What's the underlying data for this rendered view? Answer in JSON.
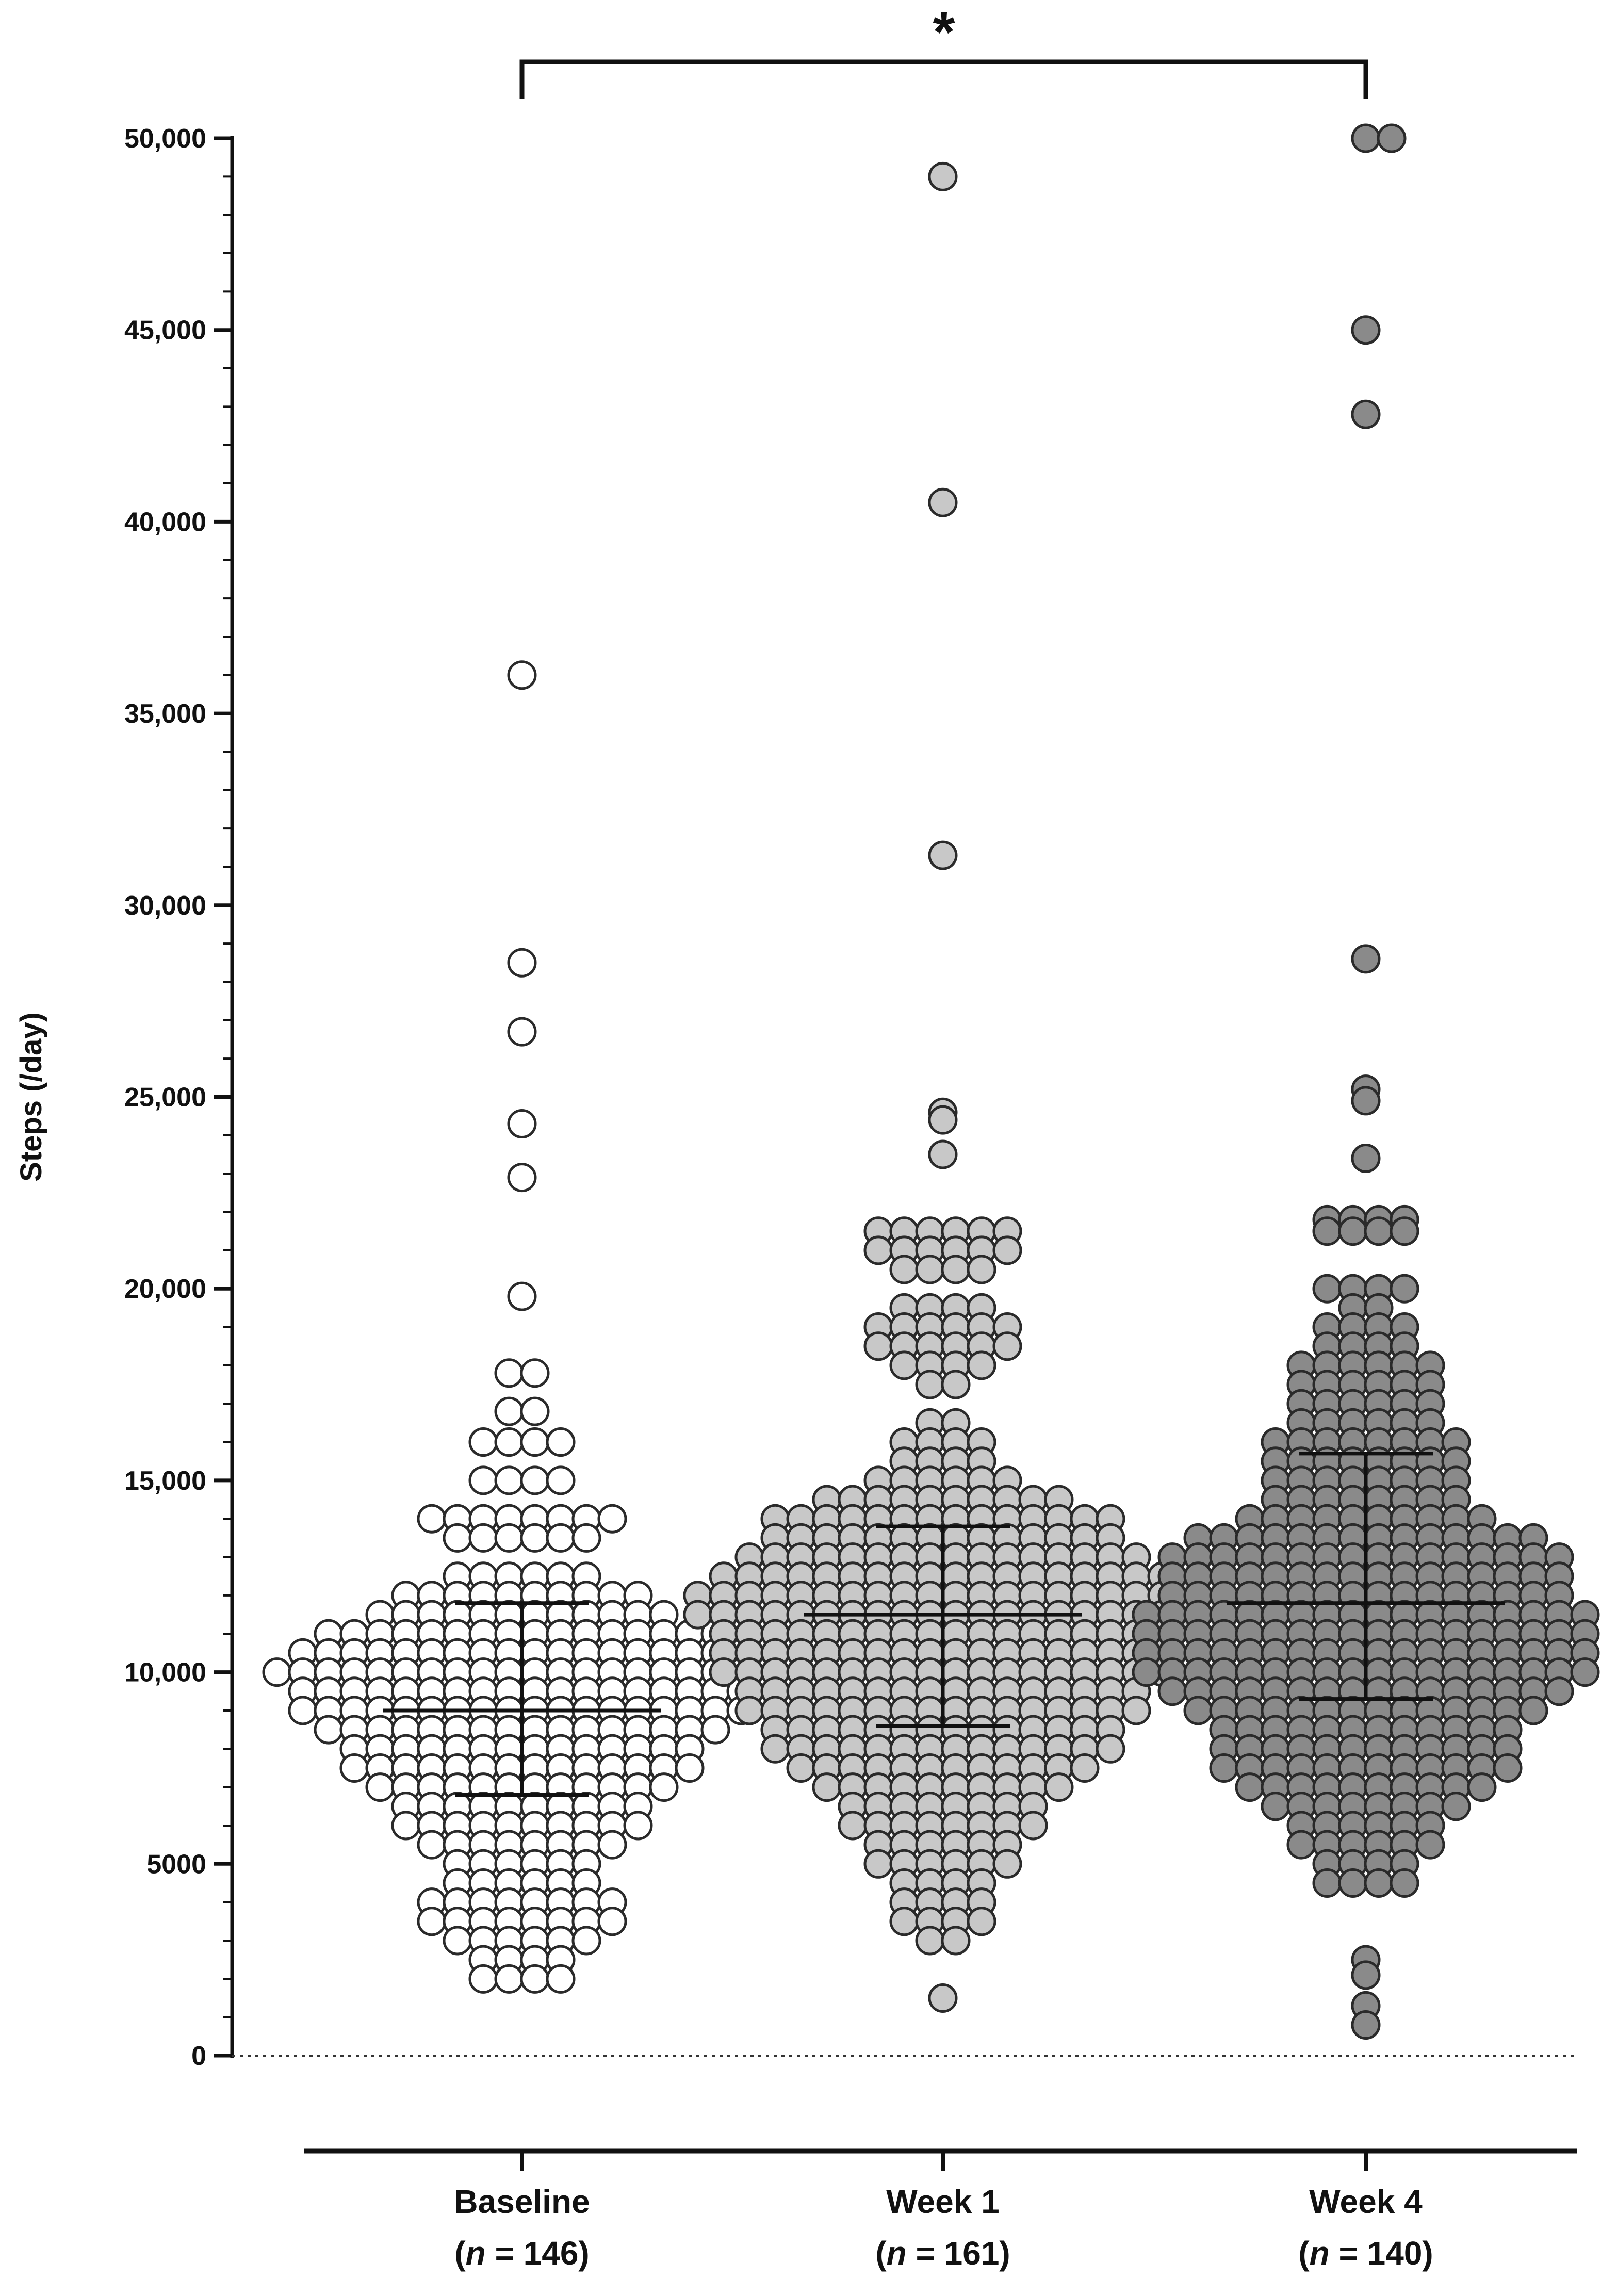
{
  "chart_data": {
    "type": "scatter",
    "subtype": "dot-strip",
    "ylabel": "Steps (/day)",
    "ylim": [
      0,
      50000
    ],
    "yticks_major": [
      0,
      5000,
      10000,
      15000,
      20000,
      25000,
      30000,
      35000,
      40000,
      45000,
      50000
    ],
    "ytick_labels": [
      "0",
      "5000",
      "10,000",
      "15,000",
      "20,000",
      "25,000",
      "30,000",
      "35,000",
      "40,000",
      "45,000",
      "50,000"
    ],
    "zero_reference_line": "dotted",
    "significance": {
      "label": "*",
      "from": 0,
      "to": 2
    },
    "groups": [
      {
        "label": "Baseline",
        "n_label": "n",
        "n_value": " = 146",
        "fill": "#ffffff",
        "median": 9000,
        "q1": 6800,
        "q3": 11800,
        "outliers": [
          36000,
          28500,
          26700,
          24300,
          22900,
          19800
        ],
        "bins": [
          [
            17800,
            2
          ],
          [
            16800,
            2
          ],
          [
            16000,
            4
          ],
          [
            15000,
            4
          ],
          [
            14000,
            8
          ],
          [
            13500,
            6
          ],
          [
            12500,
            6
          ],
          [
            12000,
            10
          ],
          [
            11500,
            12
          ],
          [
            11000,
            16
          ],
          [
            10500,
            18
          ],
          [
            10000,
            20
          ],
          [
            9500,
            18
          ],
          [
            9000,
            18
          ],
          [
            8500,
            16
          ],
          [
            8000,
            14
          ],
          [
            7500,
            14
          ],
          [
            7000,
            12
          ],
          [
            6500,
            10
          ],
          [
            6000,
            10
          ],
          [
            5500,
            8
          ],
          [
            5000,
            6
          ],
          [
            4500,
            6
          ],
          [
            4000,
            8
          ],
          [
            3500,
            8
          ],
          [
            3000,
            6
          ],
          [
            2500,
            4
          ],
          [
            2000,
            4
          ]
        ]
      },
      {
        "label": "Week 1",
        "n_label": "n",
        "n_value": " = 161",
        "fill": "#c8c8c8",
        "median": 11500,
        "q1": 8600,
        "q3": 13800,
        "outliers": [
          49000,
          40500,
          31300,
          24600,
          24400,
          23500,
          1500
        ],
        "bins": [
          [
            21500,
            6
          ],
          [
            21000,
            6
          ],
          [
            20500,
            4
          ],
          [
            19500,
            4
          ],
          [
            19000,
            6
          ],
          [
            18500,
            6
          ],
          [
            18000,
            4
          ],
          [
            17500,
            2
          ],
          [
            16500,
            2
          ],
          [
            16000,
            4
          ],
          [
            15500,
            4
          ],
          [
            15000,
            6
          ],
          [
            14500,
            10
          ],
          [
            14000,
            14
          ],
          [
            13500,
            14
          ],
          [
            13000,
            16
          ],
          [
            12500,
            18
          ],
          [
            12000,
            20
          ],
          [
            11500,
            20
          ],
          [
            11000,
            18
          ],
          [
            10500,
            18
          ],
          [
            10000,
            18
          ],
          [
            9500,
            16
          ],
          [
            9000,
            16
          ],
          [
            8500,
            14
          ],
          [
            8000,
            14
          ],
          [
            7500,
            12
          ],
          [
            7000,
            10
          ],
          [
            6500,
            8
          ],
          [
            6000,
            8
          ],
          [
            5500,
            6
          ],
          [
            5000,
            6
          ],
          [
            4500,
            4
          ],
          [
            4000,
            4
          ],
          [
            3500,
            4
          ],
          [
            3000,
            2
          ]
        ]
      },
      {
        "label": "Week 4",
        "n_label": "n",
        "n_value": " = 140",
        "fill": "#8a8a8a",
        "median": 11800,
        "q1": 9300,
        "q3": 15700,
        "outliers": [
          50000,
          50000,
          45000,
          42800,
          28600,
          25200,
          24900,
          23400,
          2500,
          2100,
          1300,
          800
        ],
        "bins": [
          [
            21800,
            4
          ],
          [
            21500,
            4
          ],
          [
            20000,
            4
          ],
          [
            19500,
            2
          ],
          [
            19000,
            4
          ],
          [
            18500,
            4
          ],
          [
            18000,
            6
          ],
          [
            17500,
            6
          ],
          [
            17000,
            6
          ],
          [
            16500,
            6
          ],
          [
            16000,
            8
          ],
          [
            15500,
            8
          ],
          [
            15000,
            8
          ],
          [
            14500,
            8
          ],
          [
            14000,
            10
          ],
          [
            13500,
            14
          ],
          [
            13000,
            16
          ],
          [
            12500,
            16
          ],
          [
            12000,
            16
          ],
          [
            11500,
            18
          ],
          [
            11000,
            18
          ],
          [
            10500,
            18
          ],
          [
            10000,
            18
          ],
          [
            9500,
            16
          ],
          [
            9000,
            14
          ],
          [
            8500,
            12
          ],
          [
            8000,
            12
          ],
          [
            7500,
            12
          ],
          [
            7000,
            10
          ],
          [
            6500,
            8
          ],
          [
            6000,
            6
          ],
          [
            5500,
            6
          ],
          [
            5000,
            4
          ],
          [
            4500,
            4
          ]
        ]
      }
    ]
  }
}
